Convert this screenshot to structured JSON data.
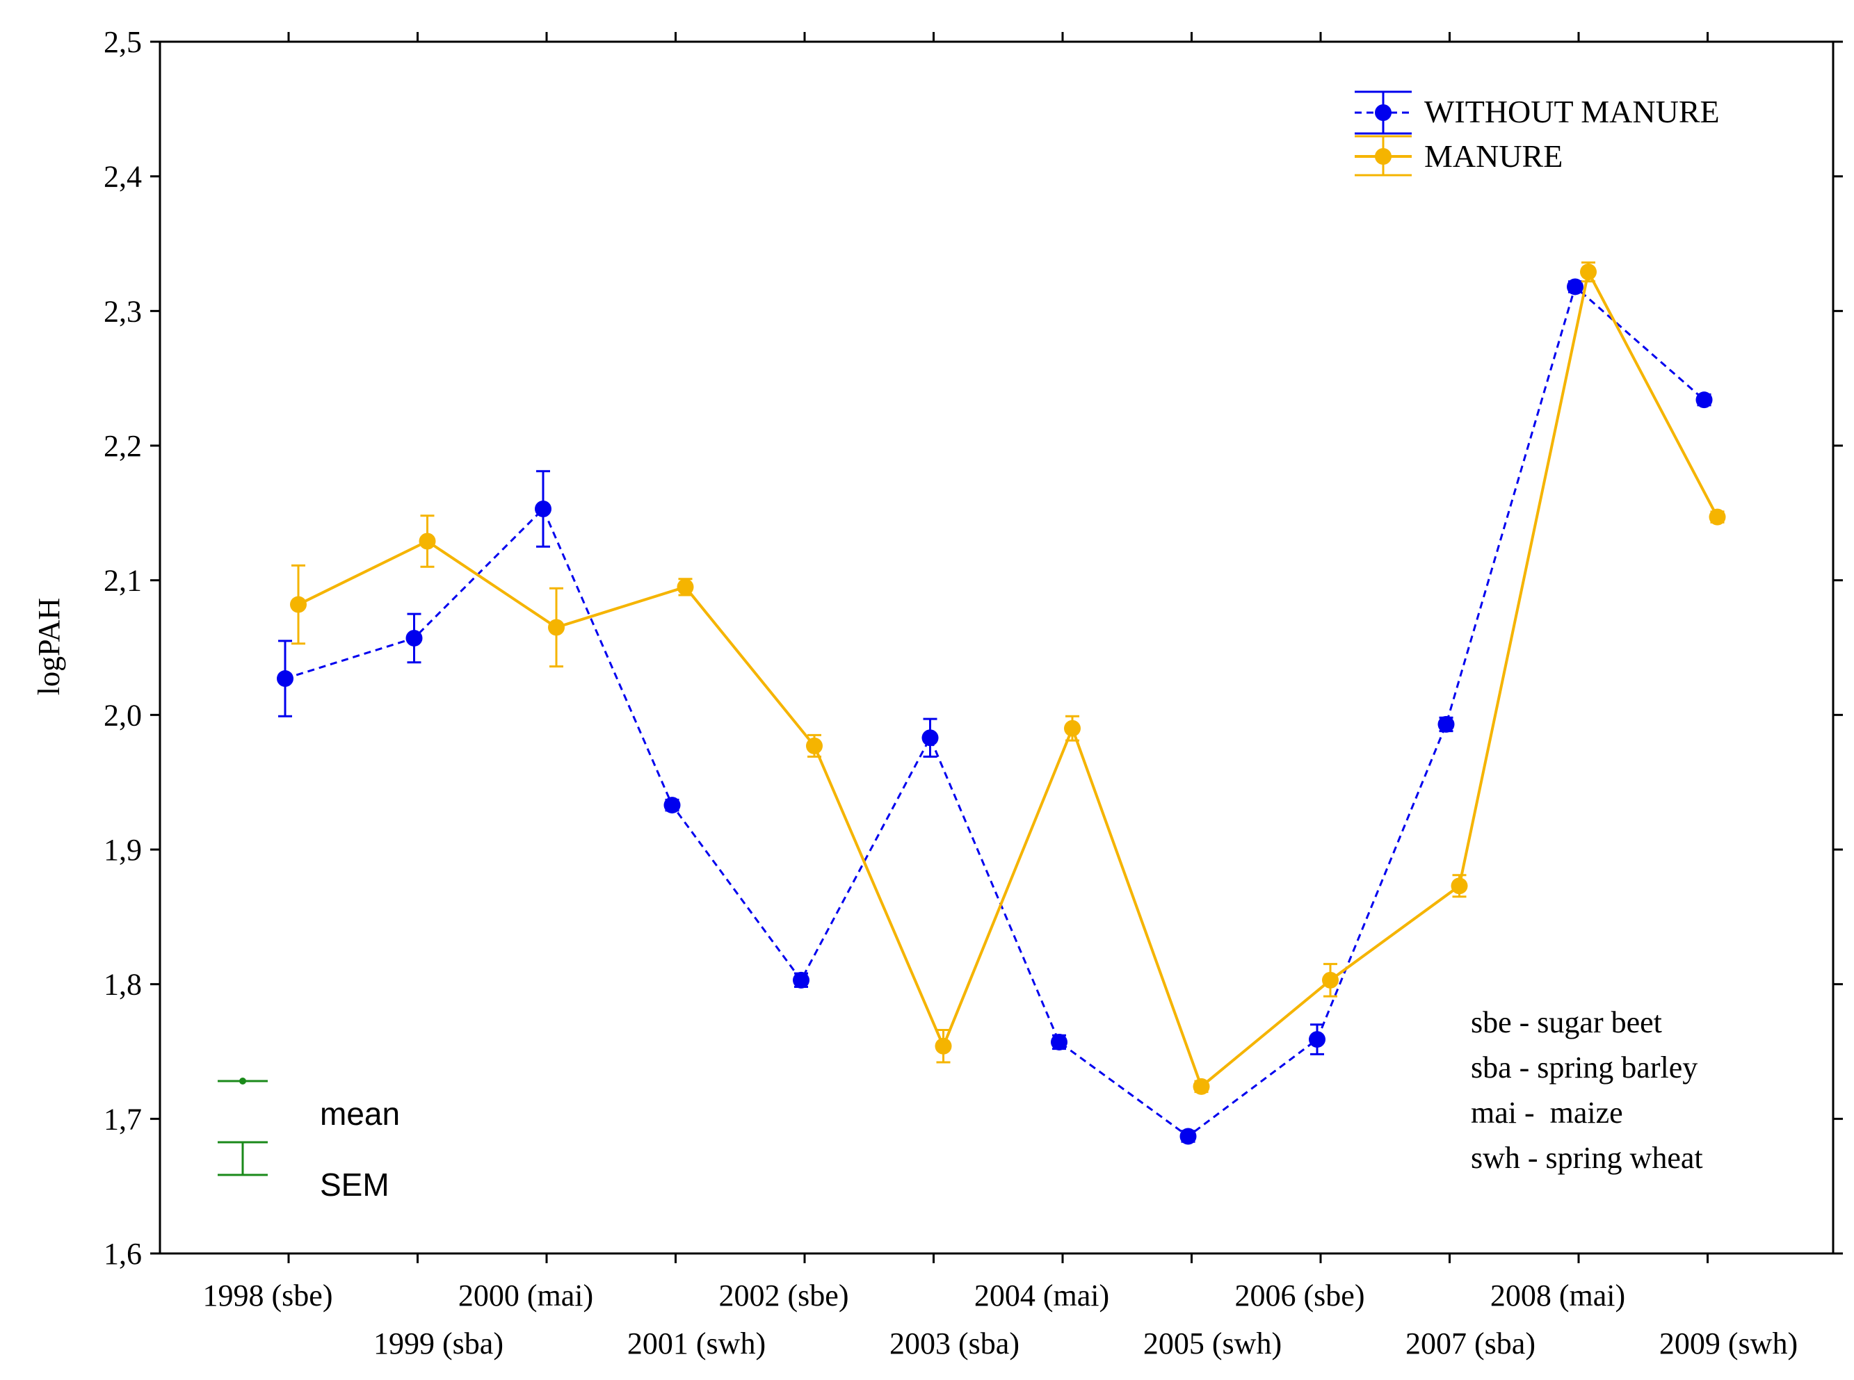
{
  "chart_data": {
    "type": "line",
    "title": "",
    "xlabel": "",
    "ylabel": "logPAH",
    "ylim": [
      1.6,
      2.5
    ],
    "yticks": [
      "1,6",
      "1,7",
      "1,8",
      "1,9",
      "2,0",
      "2,1",
      "2,2",
      "2,3",
      "2,4",
      "2,5"
    ],
    "categories": [
      "1998 (sbe)",
      "1999 (sba)",
      "2000 (mai)",
      "2001 (swh)",
      "2002 (sbe)",
      "2003 (sba)",
      "2004 (mai)",
      "2005 (swh)",
      "2006 (sbe)",
      "2007 (sba)",
      "2008 (mai)",
      "2009 (swh)"
    ],
    "series": [
      {
        "name": "WITHOUT MANURE",
        "color": "#0000ee",
        "line_style": "dashed",
        "values": [
          2.027,
          2.057,
          2.153,
          1.933,
          1.803,
          1.983,
          1.757,
          1.687,
          1.759,
          1.993,
          2.318,
          2.234
        ],
        "sem": [
          0.028,
          0.018,
          0.028,
          0.004,
          0.005,
          0.014,
          0.005,
          0.004,
          0.011,
          0.005,
          0.004,
          0.004
        ]
      },
      {
        "name": "MANURE",
        "color": "#f5b400",
        "line_style": "solid",
        "values": [
          2.082,
          2.129,
          2.065,
          2.095,
          1.977,
          1.754,
          1.99,
          1.724,
          1.803,
          1.873,
          2.329,
          2.147
        ],
        "sem": [
          0.029,
          0.019,
          0.029,
          0.006,
          0.008,
          0.012,
          0.009,
          0.004,
          0.012,
          0.008,
          0.007,
          0.004
        ]
      }
    ],
    "legend_position": "top-right",
    "key": {
      "mean_label": "mean",
      "sem_label": "SEM",
      "color": "#1a8a1a"
    },
    "crop_legend": [
      "sbe - sugar beet",
      "sba - spring barley",
      "mai -  maize",
      "swh - spring wheat"
    ]
  }
}
